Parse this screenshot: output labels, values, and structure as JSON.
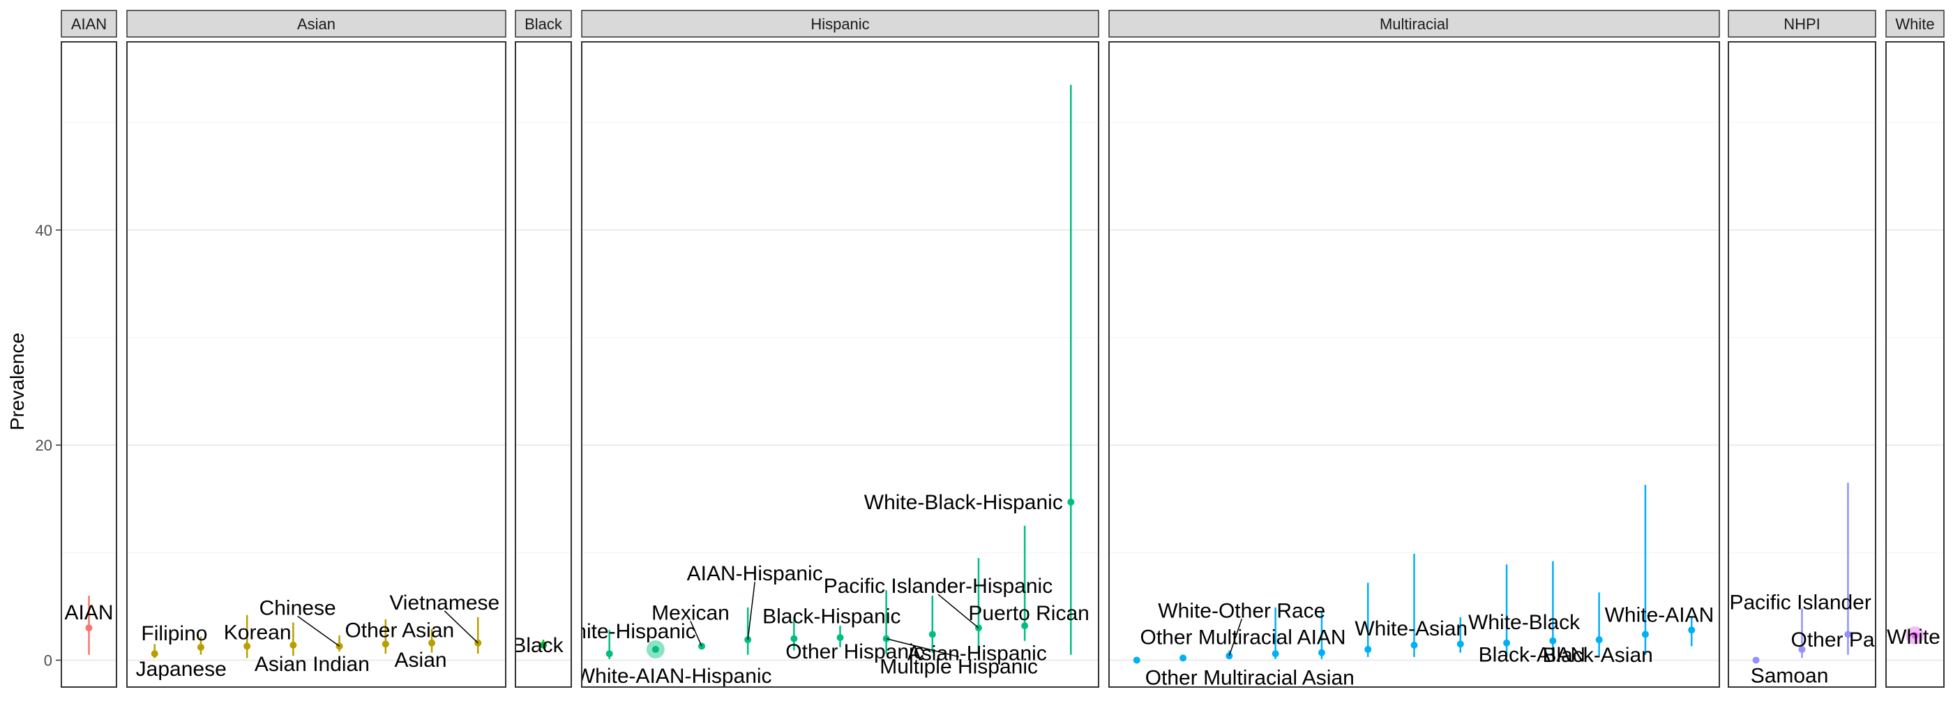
{
  "chart_data": {
    "type": "scatter",
    "ylabel": "Prevalence",
    "xlabel": "",
    "ylim": [
      -2.5,
      57.5
    ],
    "yticks": [
      0,
      20,
      40
    ],
    "grid": true,
    "legend": "none",
    "facets": [
      {
        "name": "AIAN",
        "color": "#F8766D",
        "xlim": [
          0.4,
          1.6
        ],
        "points": [
          {
            "label": "AIAN",
            "x": 1,
            "y": 3.0,
            "lo": 0.5,
            "hi": 6.0
          }
        ]
      },
      {
        "name": "Asian",
        "color": "#B79F00",
        "xlim": [
          0.4,
          8.6
        ],
        "points": [
          {
            "label": "Japanese",
            "x": 1,
            "y": 0.6,
            "lo": 0.2,
            "hi": 1.5
          },
          {
            "label": "Filipino",
            "x": 2,
            "y": 1.2,
            "lo": 0.5,
            "hi": 2.2
          },
          {
            "label": "Korean",
            "x": 3,
            "y": 1.3,
            "lo": 0.2,
            "hi": 4.2
          },
          {
            "label": "Asian Indian",
            "x": 4,
            "y": 1.4,
            "lo": 0.4,
            "hi": 3.5
          },
          {
            "label": "Chinese",
            "x": 5,
            "y": 1.3,
            "lo": 0.8,
            "hi": 2.3
          },
          {
            "label": "Other Asian",
            "x": 6,
            "y": 1.5,
            "lo": 0.6,
            "hi": 3.8
          },
          {
            "label": "Asian",
            "x": 7,
            "y": 1.6,
            "lo": 0.7,
            "hi": 2.9
          },
          {
            "label": "Vietnamese",
            "x": 8,
            "y": 1.6,
            "lo": 0.6,
            "hi": 4.0
          }
        ]
      },
      {
        "name": "Black",
        "color": "#00BA38",
        "xlim": [
          0.4,
          1.6
        ],
        "points": [
          {
            "label": "Black",
            "x": 1,
            "y": 1.4,
            "lo": 1.1,
            "hi": 1.9
          }
        ]
      },
      {
        "name": "Hispanic",
        "color": "#00BF7D",
        "xlim": [
          0.4,
          11.6
        ],
        "points": [
          {
            "label": "White-AIAN-Hispanic",
            "x": 1,
            "y": 0.6,
            "lo": 0.1,
            "hi": 2.8
          },
          {
            "label": "White-Hispanic",
            "x": 2,
            "y": 1.0,
            "lo": 0.8,
            "hi": 1.3,
            "highlight": true
          },
          {
            "label": "Mexican",
            "x": 3,
            "y": 1.3,
            "lo": 1.0,
            "hi": 1.6
          },
          {
            "label": "AIAN-Hispanic",
            "x": 4,
            "y": 1.9,
            "lo": 0.5,
            "hi": 4.9
          },
          {
            "label": "Black-Hispanic",
            "x": 5,
            "y": 2.0,
            "lo": 0.9,
            "hi": 4.0
          },
          {
            "label": "Other Hispanic",
            "x": 6,
            "y": 2.1,
            "lo": 1.2,
            "hi": 3.2
          },
          {
            "label": "Multiple Hispanic",
            "x": 7,
            "y": 2.0,
            "lo": 0.6,
            "hi": 6.5
          },
          {
            "label": "Asian-Hispanic",
            "x": 8,
            "y": 2.4,
            "lo": 0.7,
            "hi": 6.0
          },
          {
            "label": "Pacific Islander-Hispanic",
            "x": 9,
            "y": 3.0,
            "lo": 0.6,
            "hi": 9.5
          },
          {
            "label": "Puerto Rican",
            "x": 10,
            "y": 3.2,
            "lo": 1.8,
            "hi": 12.5
          },
          {
            "label": "White-Black-Hispanic",
            "x": 11,
            "y": 14.7,
            "lo": 0.5,
            "hi": 53.5
          }
        ]
      },
      {
        "name": "Multiracial",
        "color": "#00B0F6",
        "xlim": [
          0.4,
          13.6
        ],
        "points": [
          {
            "label": "Other Multiracial Asian",
            "x": 1,
            "y": 0.0,
            "lo": 0.0,
            "hi": 0.1
          },
          {
            "label": "Other Multiracial AIAN",
            "x": 2,
            "y": 0.2,
            "lo": 0.0,
            "hi": 0.5
          },
          {
            "label": "White-Other Race",
            "x": 3,
            "y": 0.4,
            "lo": 0.1,
            "hi": 0.9
          },
          {
            "label": "",
            "x": 4,
            "y": 0.6,
            "lo": 0.1,
            "hi": 4.9
          },
          {
            "label": "",
            "x": 5,
            "y": 0.7,
            "lo": 0.1,
            "hi": 4.6
          },
          {
            "label": "White-Asian",
            "x": 6,
            "y": 1.0,
            "lo": 0.3,
            "hi": 7.2
          },
          {
            "label": "",
            "x": 7,
            "y": 1.4,
            "lo": 0.3,
            "hi": 9.9
          },
          {
            "label": "",
            "x": 8,
            "y": 1.5,
            "lo": 0.7,
            "hi": 4.0
          },
          {
            "label": "White-Black",
            "x": 9,
            "y": 1.6,
            "lo": 0.3,
            "hi": 8.9
          },
          {
            "label": "Black-AIAN",
            "x": 10,
            "y": 1.8,
            "lo": 0.3,
            "hi": 9.2
          },
          {
            "label": "Black-Asian",
            "x": 11,
            "y": 1.9,
            "lo": 0.4,
            "hi": 6.3
          },
          {
            "label": "White-AIAN",
            "x": 12,
            "y": 2.4,
            "lo": 0.5,
            "hi": 16.3
          },
          {
            "label": "",
            "x": 13,
            "y": 2.8,
            "lo": 1.3,
            "hi": 4.0
          }
        ]
      },
      {
        "name": "NHPI",
        "color": "#9590FF",
        "xlim": [
          0.4,
          3.6
        ],
        "points": [
          {
            "label": "Samoan",
            "x": 1,
            "y": 0.0,
            "lo": 0.0,
            "hi": 0.1
          },
          {
            "label": "Other Pacific Islander",
            "x": 2,
            "y": 1.0,
            "lo": 0.2,
            "hi": 4.8
          },
          {
            "label": "Pacific Islander",
            "x": 3,
            "y": 2.4,
            "lo": 0.5,
            "hi": 16.5
          }
        ]
      },
      {
        "name": "White",
        "color": "#E76BF3",
        "xlim": [
          0.4,
          1.6
        ],
        "points": [
          {
            "label": "White",
            "x": 1,
            "y": 2.3,
            "lo": 2.2,
            "hi": 2.4,
            "highlight": true
          }
        ]
      }
    ]
  }
}
